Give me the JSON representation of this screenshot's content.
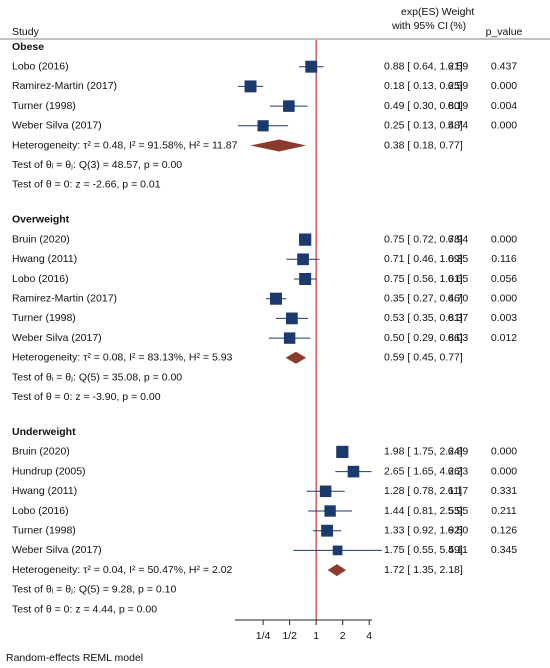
{
  "chart_data": {
    "type": "forest",
    "log_scale": true,
    "headers": {
      "study": "Study",
      "effect": [
        "exp(ES)",
        "with 95% CI"
      ],
      "weight": [
        "Weight",
        "(%)"
      ],
      "p_value": "p_value"
    },
    "xlim": [
      0.12,
      4.3
    ],
    "xticks": [
      {
        "value": 0.25,
        "label": "1/4"
      },
      {
        "value": 0.5,
        "label": "1/2"
      },
      1,
      2,
      4
    ],
    "null_value": 1,
    "colors": {
      "box": "#1c3a6e",
      "ci": "#1c3a6e",
      "diamond": "#8a3b2e",
      "null_line": "#c8392b"
    },
    "note": "Random-effects REML model",
    "groups": [
      {
        "name": "Obese",
        "studies": [
          {
            "study": "Lobo (2016)",
            "es": 0.88,
            "ci": [
              0.64,
              1.21
            ],
            "label": "0.88 [ 0.64, 1.21]",
            "weight": "6.59",
            "p_value": "0.437"
          },
          {
            "study": "Ramirez-Martin (2017)",
            "es": 0.18,
            "ci": [
              0.13,
              0.25
            ],
            "label": "0.18 [ 0.13, 0.25]",
            "weight": "6.59",
            "p_value": "0.000"
          },
          {
            "study": "Turner (1998)",
            "es": 0.49,
            "ci": [
              0.3,
              0.8
            ],
            "label": "0.49 [ 0.30, 0.80]",
            "weight": "6.19",
            "p_value": "0.004"
          },
          {
            "study": "Weber Silva (2017)",
            "es": 0.25,
            "ci": [
              0.13,
              0.48
            ],
            "label": "0.25 [ 0.13, 0.48]",
            "weight": "5.74",
            "p_value": "0.000"
          }
        ],
        "summary": {
          "es": 0.38,
          "ci": [
            0.18,
            0.77
          ],
          "label": "0.38 [ 0.18, 0.77]",
          "heterogeneity": "Heterogeneity: τ² = 0.48, I² = 91.58%, H² = 11.87",
          "test_homogeneity": "Test of θᵢ = θⱼ: Q(3) = 48.57, p = 0.00",
          "test_effect": "Test of θ = 0: z = -2.66, p = 0.01"
        }
      },
      {
        "name": "Overweight",
        "studies": [
          {
            "study": "Bruin (2020)",
            "es": 0.75,
            "ci": [
              0.72,
              0.78
            ],
            "label": "0.75 [ 0.72, 0.78]",
            "weight": "6.94",
            "p_value": "0.000"
          },
          {
            "study": "Hwang (2011)",
            "es": 0.71,
            "ci": [
              0.46,
              1.09
            ],
            "label": "0.71 [ 0.46, 1.09]",
            "weight": "6.35",
            "p_value": "0.116"
          },
          {
            "study": "Lobo (2016)",
            "es": 0.75,
            "ci": [
              0.56,
              1.01
            ],
            "label": "0.75 [ 0.56, 1.01]",
            "weight": "6.65",
            "p_value": "0.056"
          },
          {
            "study": "Ramirez-Martin (2017)",
            "es": 0.35,
            "ci": [
              0.27,
              0.46
            ],
            "label": "0.35 [ 0.27, 0.46]",
            "weight": "6.70",
            "p_value": "0.000"
          },
          {
            "study": "Turner (1998)",
            "es": 0.53,
            "ci": [
              0.35,
              0.81
            ],
            "label": "0.53 [ 0.35, 0.81]",
            "weight": "6.37",
            "p_value": "0.003"
          },
          {
            "study": "Weber Silva (2017)",
            "es": 0.5,
            "ci": [
              0.29,
              0.86
            ],
            "label": "0.50 [ 0.29, 0.86]",
            "weight": "6.03",
            "p_value": "0.012"
          }
        ],
        "summary": {
          "es": 0.59,
          "ci": [
            0.45,
            0.77
          ],
          "label": "0.59 [ 0.45, 0.77]",
          "heterogeneity": "Heterogeneity: τ² = 0.08, I² = 83.13%, H² = 5.93",
          "test_homogeneity": "Test of θᵢ = θⱼ: Q(5) = 35.08, p = 0.00",
          "test_effect": "Test of θ = 0: z = -3.90, p = 0.00"
        }
      },
      {
        "name": "Underweight",
        "studies": [
          {
            "study": "Bruin (2020)",
            "es": 1.98,
            "ci": [
              1.75,
              2.24
            ],
            "label": "1.98 [ 1.75, 2.24]",
            "weight": "6.89",
            "p_value": "0.000"
          },
          {
            "study": "Hundrup (2005)",
            "es": 2.65,
            "ci": [
              1.65,
              4.26
            ],
            "label": "2.65 [ 1.65, 4.26]",
            "weight": "6.23",
            "p_value": "0.000"
          },
          {
            "study": "Hwang (2011)",
            "es": 1.28,
            "ci": [
              0.78,
              2.11
            ],
            "label": "1.28 [ 0.78, 2.11]",
            "weight": "6.17",
            "p_value": "0.331"
          },
          {
            "study": "Lobo (2016)",
            "es": 1.44,
            "ci": [
              0.81,
              2.55
            ],
            "label": "1.44 [ 0.81, 2.55]",
            "weight": "5.95",
            "p_value": "0.211"
          },
          {
            "study": "Turner (1998)",
            "es": 1.33,
            "ci": [
              0.92,
              1.92
            ],
            "label": "1.33 [ 0.92, 1.92]",
            "weight": "6.50",
            "p_value": "0.126"
          },
          {
            "study": "Weber Silva (2017)",
            "es": 1.75,
            "ci": [
              0.55,
              5.59
            ],
            "label": "1.75 [ 0.55, 5.59]",
            "weight": "4.11",
            "p_value": "0.345"
          }
        ],
        "summary": {
          "es": 1.72,
          "ci": [
            1.35,
            2.18
          ],
          "label": "1.72 [ 1.35, 2.18]",
          "heterogeneity": "Heterogeneity: τ² = 0.04, I² = 50.47%, H² = 2.02",
          "test_homogeneity": "Test of θᵢ = θⱼ: Q(5) = 9.28, p = 0.10",
          "test_effect": "Test of θ = 0: z = 4.44, p = 0.00"
        }
      }
    ]
  }
}
